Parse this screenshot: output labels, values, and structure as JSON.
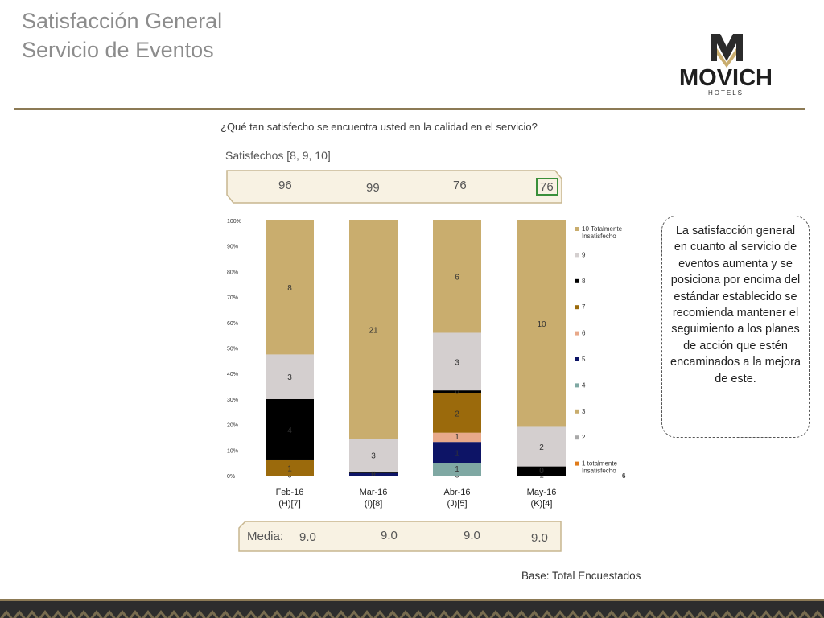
{
  "header": {
    "title_line1": "Satisfacción General",
    "title_line2": "Servicio de Eventos",
    "logo_name": "MOVICH",
    "logo_sub": "HOTELS"
  },
  "question": "¿Qué tan satisfecho se encuentra usted en la calidad en el servicio?",
  "satisfechos": {
    "label": "Satisfechos [8, 9, 10]",
    "values": [
      "96",
      "99",
      "76",
      "76"
    ]
  },
  "media": {
    "label": "Media:",
    "values": [
      "9.0",
      "9.0",
      "9.0",
      "9.0"
    ]
  },
  "callout": "La satisfacción general en cuanto al servicio de eventos aumenta y se posiciona por encima del estándar establecido se recomienda mantener el seguimiento a los planes de acción que estén encaminados a la mejora de este.",
  "base_note": "Base: Total Encuestados",
  "colors": {
    "gold": "#c9ad6e",
    "light_gray": "#d4cfcf",
    "black": "#000000",
    "dark_gold": "#9b6a0c",
    "salmon": "#e8a98a",
    "navy": "#0d1466",
    "teal": "#7fa8a3",
    "frame_fill": "#f8f2e3",
    "frame_stroke": "#c7b68f",
    "highlight_box": "#3a8f3a"
  },
  "chart_data": {
    "type": "bar",
    "stacked": true,
    "categories": [
      "Feb-16",
      "Mar-16",
      "Abr-16",
      "May-16"
    ],
    "category_sublabels": [
      "(H)[7]",
      "(I)[8]",
      "(J)[5]",
      "(K)[4]"
    ],
    "ylim": [
      0,
      100
    ],
    "y_ticks": [
      "0%",
      "10%",
      "20%",
      "30%",
      "40%",
      "50%",
      "60%",
      "70%",
      "80%",
      "90%",
      "100%"
    ],
    "legend": [
      {
        "label": "10 Totalmente",
        "label2": "Insatisfecho",
        "color": "#c9ad6e"
      },
      {
        "label": "9",
        "label2": "",
        "color": "#d4cfcf"
      },
      {
        "label": "8",
        "label2": "",
        "color": "#000000"
      },
      {
        "label": "7",
        "label2": "",
        "color": "#9b6a0c"
      },
      {
        "label": "6",
        "label2": "",
        "color": "#e8a98a"
      },
      {
        "label": "5",
        "label2": "",
        "color": "#0d1466"
      },
      {
        "label": "4",
        "label2": "",
        "color": "#7fa8a3"
      },
      {
        "label": "3",
        "label2": "",
        "color": "#c9ad6e"
      },
      {
        "label": "2",
        "label2": "",
        "color": "#a9a9a9"
      },
      {
        "label": "1 totalmente",
        "label2": "Insatisfecho",
        "color": "#e07b1a"
      }
    ],
    "extra_legend_mark": "6",
    "bars": [
      {
        "category": "Feb-16",
        "segments": [
          {
            "series": "1",
            "percent": 0,
            "label": "0",
            "color": "#e07b1a"
          },
          {
            "series": "7",
            "percent": 6,
            "label": "1",
            "color": "#9b6a0c"
          },
          {
            "series": "8",
            "percent": 24,
            "label": "4",
            "color": "#000000"
          },
          {
            "series": "9",
            "percent": 17.5,
            "label": "3",
            "color": "#d4cfcf"
          },
          {
            "series": "10",
            "percent": 52.5,
            "label": "8",
            "color": "#c9ad6e"
          }
        ]
      },
      {
        "category": "Mar-16",
        "segments": [
          {
            "series": "5",
            "percent": 1,
            "label": "0",
            "color": "#0d1466"
          },
          {
            "series": "8",
            "percent": 0.6,
            "label": "0",
            "color": "#000000"
          },
          {
            "series": "9",
            "percent": 12.9,
            "label": "3",
            "color": "#d4cfcf"
          },
          {
            "series": "10",
            "percent": 85.5,
            "label": "21",
            "color": "#c9ad6e"
          }
        ]
      },
      {
        "category": "Abr-16",
        "segments": [
          {
            "series": "1",
            "percent": 0,
            "label": "0",
            "color": "#e07b1a"
          },
          {
            "series": "4",
            "percent": 4.8,
            "label": "1",
            "color": "#7fa8a3"
          },
          {
            "series": "5",
            "percent": 8.4,
            "label": "1",
            "color": "#0d1466"
          },
          {
            "series": "6",
            "percent": 3.6,
            "label": "1",
            "color": "#e8a98a"
          },
          {
            "series": "7",
            "percent": 15.4,
            "label": "2",
            "color": "#9b6a0c"
          },
          {
            "series": "8",
            "percent": 1.2,
            "label": "0",
            "color": "#000000"
          },
          {
            "series": "9",
            "percent": 22.6,
            "label": "3",
            "color": "#d4cfcf"
          },
          {
            "series": "10",
            "percent": 44,
            "label": "6",
            "color": "#c9ad6e"
          }
        ]
      },
      {
        "category": "May-16",
        "segments": [
          {
            "series": "1",
            "percent": 0,
            "label": "1",
            "color": "#e07b1a"
          },
          {
            "series": "8",
            "percent": 3.6,
            "label": "0",
            "color": "#000000"
          },
          {
            "series": "9",
            "percent": 15.5,
            "label": "2",
            "color": "#d4cfcf"
          },
          {
            "series": "10",
            "percent": 80.9,
            "label": "10",
            "color": "#c9ad6e"
          }
        ]
      }
    ]
  }
}
